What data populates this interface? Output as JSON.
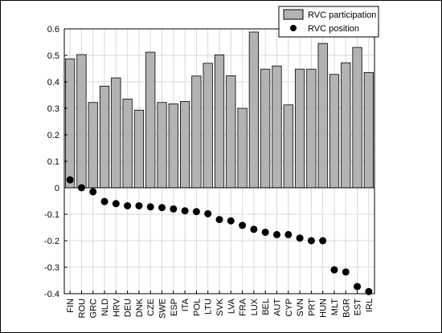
{
  "chart_data": {
    "type": "bar",
    "categories": [
      "FIN",
      "ROU",
      "GRC",
      "NLD",
      "HRV",
      "DEU",
      "DNK",
      "CZE",
      "SWE",
      "ESP",
      "ITA",
      "POL",
      "LTU",
      "SVK",
      "LVA",
      "FRA",
      "LUX",
      "BEL",
      "AUT",
      "CYP",
      "SVN",
      "PRT",
      "HUN",
      "MLT",
      "BGR",
      "EST",
      "IRL"
    ],
    "series": [
      {
        "name": "RVC participation",
        "kind": "bar",
        "color": "#b3b3b3",
        "values": [
          0.487,
          0.503,
          0.322,
          0.384,
          0.415,
          0.335,
          0.293,
          0.512,
          0.322,
          0.317,
          0.326,
          0.422,
          0.47,
          0.502,
          0.423,
          0.3,
          0.588,
          0.448,
          0.46,
          0.313,
          0.448,
          0.448,
          0.545,
          0.428,
          0.472,
          0.53,
          0.435
        ]
      },
      {
        "name": "RVC position",
        "kind": "point",
        "color": "#000000",
        "values": [
          0.03,
          0.0,
          -0.015,
          -0.052,
          -0.06,
          -0.068,
          -0.068,
          -0.072,
          -0.075,
          -0.08,
          -0.087,
          -0.09,
          -0.098,
          -0.12,
          -0.125,
          -0.142,
          -0.157,
          -0.168,
          -0.177,
          -0.177,
          -0.19,
          -0.2,
          -0.2,
          -0.31,
          -0.318,
          -0.373,
          -0.392
        ]
      }
    ],
    "ylim": [
      -0.4,
      0.6
    ],
    "yticks": [
      "0.6",
      "0.5",
      "0.4",
      "0.3",
      "0.2",
      "0.1",
      "0",
      "-0.1",
      "-0.2",
      "-0.3",
      "-0.4"
    ],
    "grid": true,
    "legend": "top-right",
    "title": "",
    "xlabel": "",
    "ylabel": ""
  }
}
